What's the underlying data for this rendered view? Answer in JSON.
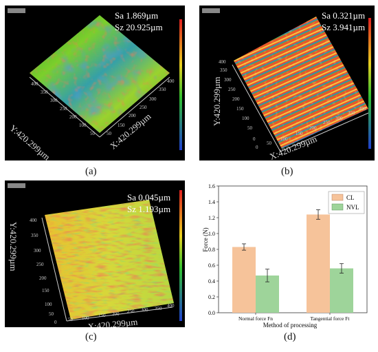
{
  "panels": [
    {
      "id": "a",
      "caption": "(a)",
      "sa": "Sa 1.869µm",
      "sz": "Sz 20.925µm",
      "y_label": "Y:420.299µm",
      "x_label": "X:420.299µm"
    },
    {
      "id": "b",
      "caption": "(b)",
      "sa": "Sa 0.321µm",
      "sz": "Sz 3.941µm",
      "y_label": "Y:420.299µm",
      "x_label": "X:420.299µm"
    },
    {
      "id": "c",
      "caption": "(c)",
      "sa": "Sa 0.045µm",
      "sz": "Sz 1.193µm",
      "y_label": "Y:420.299µm",
      "x_label": "X:420.299µm"
    }
  ],
  "chart_caption": "(d)",
  "chart_data": {
    "type": "bar",
    "categories": [
      "Normal force Fn",
      "Tangential force Ft"
    ],
    "series": [
      {
        "name": "CL",
        "values": [
          0.83,
          1.24
        ],
        "errors": [
          0.04,
          0.06
        ],
        "color": "#f6c39a"
      },
      {
        "name": "NVL",
        "values": [
          0.47,
          0.56
        ],
        "errors": [
          0.08,
          0.06
        ],
        "color": "#9ed49a"
      }
    ],
    "xlabel": "Method of processing",
    "ylabel": "Force (N)",
    "ylim": [
      0,
      1.6
    ],
    "yticks": [
      "0.0",
      "0.2",
      "0.4",
      "0.6",
      "0.8",
      "1.0",
      "1.2",
      "1.4",
      "1.6"
    ],
    "legend": "top-right"
  }
}
